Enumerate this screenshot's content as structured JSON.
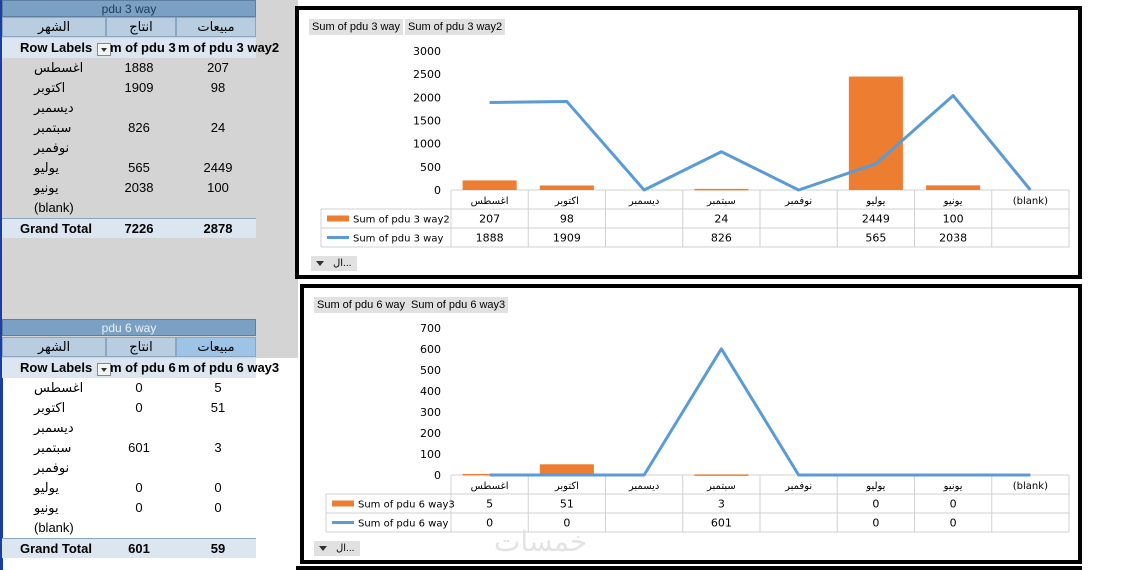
{
  "colors": {
    "line": "#5b9bd5",
    "bar": "#ed7d31",
    "pivot_title": "#7aa0c4",
    "pivot_header": "#b8cde0"
  },
  "watermark": "خمسات",
  "pivot1": {
    "title": "pdu 3 way",
    "headers": {
      "month": "الشهر",
      "production": "انتاج",
      "sales": "مبيعات"
    },
    "row_labels": "Row Labels",
    "col1": "m of pdu 3 ",
    "col2": "m of pdu 3 way2",
    "rows": [
      {
        "label": "اغسطس",
        "v1": "1888",
        "v2": "207"
      },
      {
        "label": "اكتوبر",
        "v1": "1909",
        "v2": "98"
      },
      {
        "label": "ديسمبر",
        "v1": "",
        "v2": ""
      },
      {
        "label": "سبتمبر",
        "v1": "826",
        "v2": "24"
      },
      {
        "label": "نوفمبر",
        "v1": "",
        "v2": ""
      },
      {
        "label": "يوليو",
        "v1": "565",
        "v2": "2449"
      },
      {
        "label": "يونيو",
        "v1": "2038",
        "v2": "100"
      },
      {
        "label": "(blank)",
        "v1": "",
        "v2": ""
      }
    ],
    "grand_total": {
      "label": "Grand Total",
      "v1": "7226",
      "v2": "2878"
    }
  },
  "pivot2": {
    "title": "pdu 6 way",
    "headers": {
      "month": "الشهر",
      "production": "انتاج",
      "sales": "مبيعات"
    },
    "row_labels": "Row Labels",
    "col1": "m of pdu 6 ",
    "col2": "m of pdu 6 way3",
    "rows": [
      {
        "label": "اغسطس",
        "v1": "0",
        "v2": "5"
      },
      {
        "label": "اكتوبر",
        "v1": "0",
        "v2": "51"
      },
      {
        "label": "ديسمبر",
        "v1": "",
        "v2": ""
      },
      {
        "label": "سبتمبر",
        "v1": "601",
        "v2": "3"
      },
      {
        "label": "نوفمبر",
        "v1": "",
        "v2": ""
      },
      {
        "label": "يوليو",
        "v1": "0",
        "v2": "0"
      },
      {
        "label": "يونيو",
        "v1": "0",
        "v2": "0"
      },
      {
        "label": "(blank)",
        "v1": "",
        "v2": ""
      }
    ],
    "grand_total": {
      "label": "Grand Total",
      "v1": "601",
      "v2": "59"
    }
  },
  "chart_data": [
    {
      "type": "bar",
      "title": "",
      "field_buttons": [
        "Sum of pdu 3 way",
        "Sum of pdu 3 way2"
      ],
      "axis_button": "ال...",
      "categories": [
        "اغسطس",
        "اكتوبر",
        "ديسمبر",
        "سبتمبر",
        "نوفمبر",
        "يوليو",
        "يونيو",
        "(blank)"
      ],
      "ylim": [
        0,
        3000
      ],
      "yticks": [
        "0",
        "500",
        "1000",
        "1500",
        "2000",
        "2500",
        "3000"
      ],
      "series": [
        {
          "name": "Sum of pdu 3 way2",
          "kind": "bar",
          "values": [
            207,
            98,
            null,
            24,
            null,
            2449,
            100,
            null
          ],
          "labels": [
            "207",
            "98",
            "",
            "24",
            "",
            "2449",
            "100",
            ""
          ]
        },
        {
          "name": "Sum of pdu 3 way",
          "kind": "line",
          "values": [
            1888,
            1909,
            0,
            826,
            0,
            565,
            2038,
            0
          ],
          "labels": [
            "1888",
            "1909",
            "",
            "826",
            "",
            "565",
            "2038",
            ""
          ]
        }
      ]
    },
    {
      "type": "bar",
      "title": "",
      "field_buttons": [
        "Sum of pdu 6 way",
        "Sum of pdu 6 way3"
      ],
      "axis_button": "ال...",
      "categories": [
        "اغسطس",
        "اكتوبر",
        "ديسمبر",
        "سبتمبر",
        "نوفمبر",
        "يوليو",
        "يونيو",
        "(blank)"
      ],
      "ylim": [
        0,
        700
      ],
      "yticks": [
        "0",
        "100",
        "200",
        "300",
        "400",
        "500",
        "600",
        "700"
      ],
      "series": [
        {
          "name": "Sum of pdu 6 way3",
          "kind": "bar",
          "values": [
            5,
            51,
            null,
            3,
            null,
            0,
            0,
            null
          ],
          "labels": [
            "5",
            "51",
            "",
            "3",
            "",
            "0",
            "0",
            ""
          ]
        },
        {
          "name": "Sum of pdu 6 way",
          "kind": "line",
          "values": [
            0,
            0,
            0,
            601,
            0,
            0,
            0,
            0
          ],
          "labels": [
            "0",
            "0",
            "",
            "601",
            "",
            "0",
            "0",
            ""
          ]
        }
      ]
    }
  ]
}
